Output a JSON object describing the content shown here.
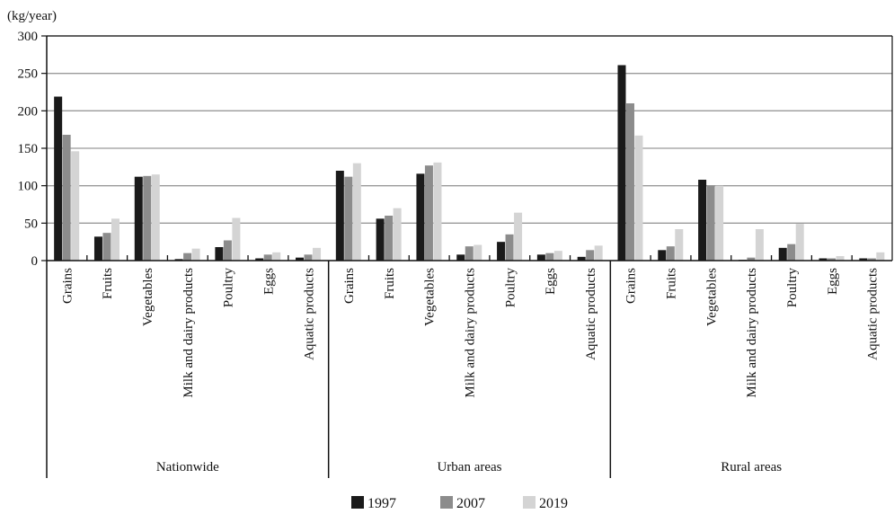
{
  "chart_data": {
    "type": "bar",
    "unit_label": "(kg/year)",
    "ylim": [
      0,
      300
    ],
    "yticks": [
      "0",
      "50",
      "100",
      "150",
      "200",
      "250",
      "300"
    ],
    "grid": true,
    "legend_position": "bottom",
    "colors": {
      "1997": "#1a1a1a",
      "2007": "#8c8c8c",
      "2019": "#d4d4d4"
    },
    "categories": [
      "Grains",
      "Fruits",
      "Vegetables",
      "Milk and dairy products",
      "Poultry",
      "Eggs",
      "Aquatic  products"
    ],
    "groups": [
      {
        "name": "Nationwide",
        "series": [
          {
            "name": "1997",
            "values": [
              219,
              32,
              112,
              2,
              18,
              3,
              4
            ]
          },
          {
            "name": "2007",
            "values": [
              168,
              37,
              113,
              10,
              27,
              8,
              8
            ]
          },
          {
            "name": "2019",
            "values": [
              146,
              56,
              115,
              16,
              57,
              11,
              17
            ]
          }
        ]
      },
      {
        "name": "Urban areas",
        "series": [
          {
            "name": "1997",
            "values": [
              120,
              56,
              116,
              8,
              25,
              8,
              5
            ]
          },
          {
            "name": "2007",
            "values": [
              112,
              60,
              127,
              19,
              35,
              10,
              14
            ]
          },
          {
            "name": "2019",
            "values": [
              130,
              70,
              131,
              21,
              64,
              13,
              20
            ]
          }
        ]
      },
      {
        "name": "Rural areas",
        "series": [
          {
            "name": "1997",
            "values": [
              261,
              14,
              108,
              1,
              17,
              3,
              3
            ]
          },
          {
            "name": "2007",
            "values": [
              210,
              19,
              100,
              4,
              22,
              3,
              3
            ]
          },
          {
            "name": "2019",
            "values": [
              167,
              42,
              100,
              42,
              49,
              6,
              11
            ]
          }
        ]
      }
    ],
    "legend": [
      "1997",
      "2007",
      "2019"
    ]
  }
}
